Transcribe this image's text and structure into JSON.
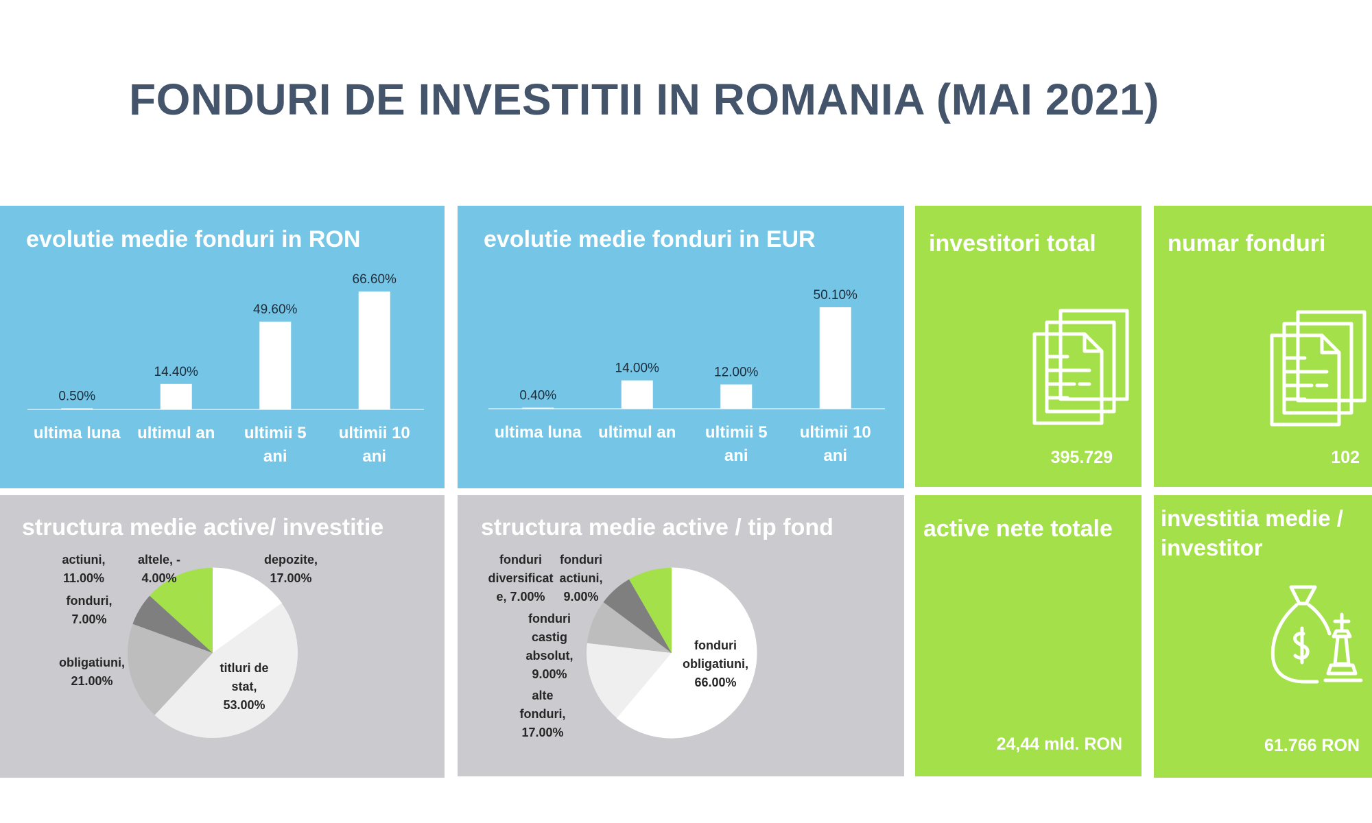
{
  "title": "FONDURI DE INVESTITII IN ROMANIA (MAI 2021)",
  "colors": {
    "blue_panel": "#74c5e6",
    "gray_panel": "#cacacf",
    "green_panel": "#a3e04a",
    "title_color": "#44546a"
  },
  "kpis": {
    "investitori": {
      "title": "investitori total",
      "value": "395.729",
      "icon": "documents-icon"
    },
    "fonduri": {
      "title": "numar fonduri",
      "value": "102",
      "icon": "documents-icon"
    },
    "active": {
      "title": "active nete totale",
      "value": "24,44 mld. RON"
    },
    "investitie": {
      "title": "investitia medie / investitor",
      "value": "61.766 RON",
      "icon": "money-bag-chess-icon"
    }
  },
  "chart_data": [
    {
      "type": "bar",
      "title": "evolutie medie fonduri in RON",
      "categories": [
        [
          "ultima luna"
        ],
        [
          "ultimul an"
        ],
        [
          "ultimii 5",
          "ani"
        ],
        [
          "ultimii 10",
          "ani"
        ]
      ],
      "values": [
        0.5,
        14.4,
        49.6,
        66.6
      ],
      "labels": [
        "0.50%",
        "14.40%",
        "49.60%",
        "66.60%"
      ],
      "ylim": [
        0,
        66.6
      ],
      "grid": false,
      "bar_color": "#ffffff"
    },
    {
      "type": "bar",
      "title": "evolutie medie fonduri in EUR",
      "categories": [
        [
          "ultima luna"
        ],
        [
          "ultimul an"
        ],
        [
          "ultimii 5",
          "ani"
        ],
        [
          "ultimii 10",
          "ani"
        ]
      ],
      "values": [
        0.4,
        14.0,
        12.0,
        50.1
      ],
      "labels": [
        "0.40%",
        "14.00%",
        "12.00%",
        "50.10%"
      ],
      "ylim": [
        0,
        50.1
      ],
      "grid": false,
      "bar_color": "#ffffff"
    },
    {
      "type": "pie",
      "title": "structura medie active/ investitie",
      "slices": [
        {
          "name": [
            "depozite,",
            "17.00%"
          ],
          "value": 17,
          "color": "#ffffff"
        },
        {
          "name": [
            "titluri de",
            "stat,",
            "53.00%"
          ],
          "value": 53,
          "color": "#efefef"
        },
        {
          "name": [
            "obligatiuni,",
            "21.00%"
          ],
          "value": 21,
          "color": "#bdbdbd"
        },
        {
          "name": [
            "fonduri,",
            "7.00%"
          ],
          "value": 7,
          "color": "#7f7f7f"
        },
        {
          "name": [
            "actiuni,",
            "11.00%"
          ],
          "value": 11,
          "color": "#a3e04a"
        },
        {
          "name": [
            "altele, -",
            "4.00%"
          ],
          "value": -4,
          "color": "#a3e04a"
        }
      ]
    },
    {
      "type": "pie",
      "title": "structura medie active / tip fond",
      "slices": [
        {
          "name": [
            "fonduri",
            "obligatiuni,",
            "66.00%"
          ],
          "value": 66,
          "color": "#ffffff"
        },
        {
          "name": [
            "alte",
            "fonduri,",
            "17.00%"
          ],
          "value": 17,
          "color": "#efefef"
        },
        {
          "name": [
            "fonduri",
            "castig",
            "absolut,",
            "9.00%"
          ],
          "value": 9,
          "color": "#bdbdbd"
        },
        {
          "name": [
            "fonduri",
            "diversificat",
            "e, 7.00%"
          ],
          "value": 7,
          "color": "#7f7f7f"
        },
        {
          "name": [
            "fonduri",
            "actiuni,",
            "9.00%"
          ],
          "value": 9,
          "color": "#a3e04a"
        }
      ]
    }
  ]
}
